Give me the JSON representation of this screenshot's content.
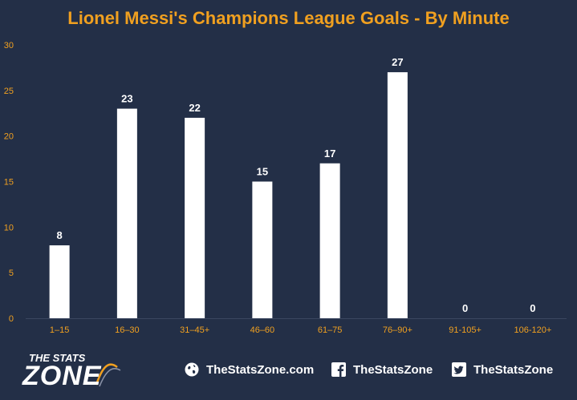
{
  "chart_data": {
    "type": "bar",
    "title": "Lionel Messi's Champions League Goals - By Minute",
    "xlabel": "",
    "ylabel": "",
    "categories": [
      "1–15",
      "16–30",
      "31–45+",
      "46–60",
      "61–75",
      "76–90+",
      "91-105+",
      "106-120+"
    ],
    "values": [
      8,
      23,
      22,
      15,
      17,
      27,
      0,
      0
    ],
    "data_labels": [
      "8",
      "23",
      "22",
      "15",
      "17",
      "27",
      "0",
      "0"
    ],
    "ylim": [
      0,
      30
    ],
    "yticks": [
      "0",
      "5",
      "10",
      "15",
      "20",
      "25",
      "30"
    ],
    "grid": false,
    "legend": "none",
    "colors": {
      "background": "#232f47",
      "bar": "#ffffff",
      "title": "#f0a020",
      "tick_labels": "#f0a020",
      "data_labels": "#ffffff",
      "axis": "#3a4660"
    }
  },
  "footer": {
    "logo_top": "THE STATS",
    "logo_main": "ZONE",
    "website": "TheStatsZone.com",
    "facebook": "TheStatsZone",
    "twitter": "TheStatsZone",
    "icons": [
      "globe-icon",
      "facebook-icon",
      "twitter-icon"
    ]
  }
}
